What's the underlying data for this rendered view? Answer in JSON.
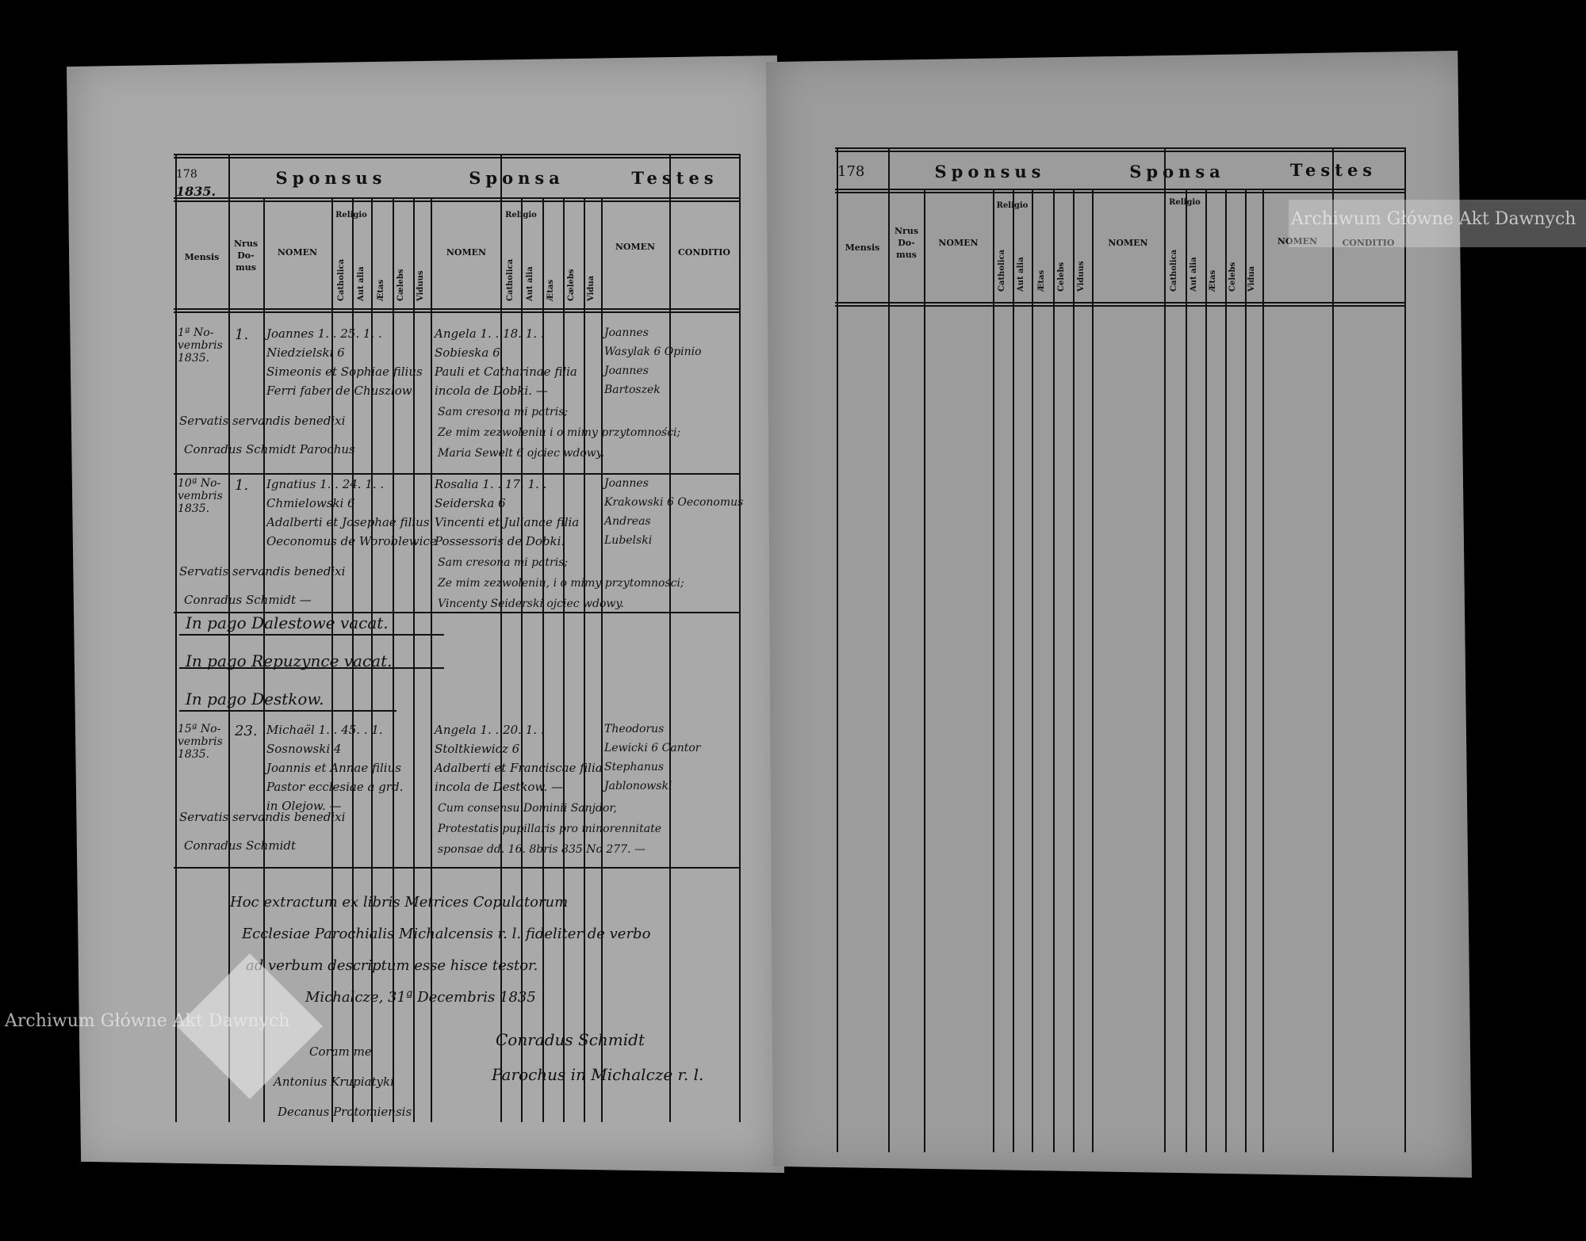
{
  "left_page": {
    "page_number": "178",
    "year": "1835.",
    "section_headers": [
      "Sponsus",
      "Sponsa",
      "Testes"
    ],
    "columns": {
      "mensis": "Mensis",
      "nrus_domus": "Nrus Do- mus",
      "nomen": "NOMEN",
      "religio": "Religio",
      "catholica": "Catholica",
      "aut_alia": "Aut alia",
      "aetas": "Ætas",
      "celebs": "Cælebs",
      "viduus": "Viduus",
      "vidua": "Vidua",
      "conditio": "CONDITIO"
    },
    "entries": [
      {
        "mensis": "1ª No- vembris 1835.",
        "domus": "1.",
        "sponsus": [
          "Joannes 1. . 25. 1. .",
          "Niedzielski 6",
          "Simeonis et Sophiae filius",
          "Ferri faber de Chuszlow"
        ],
        "sponsa": [
          "Angela 1. . 18. 1. .",
          "Sobieska 6",
          "Pauli et Catharinae filia",
          "incola de Dobki. —"
        ],
        "testes": [
          "Joannes",
          "Wasylak 6 Opinio",
          "Joannes",
          "Bartoszek"
        ],
        "notes": [
          "Servatis servandis benedixi",
          "Conradus Schmidt Parochus",
          "Sam cresona mi patris;",
          "Ze mim zezwoleniu i o mimy przytomności;",
          "Maria Sewelt 6 ojciec wdowy."
        ]
      },
      {
        "mensis": "10ª No- vembris 1835.",
        "domus": "1.",
        "sponsus": [
          "Ignatius 1. . 24. 1. .",
          "Chmielowski 6",
          "Adalberti et Josephae filius",
          "Oeconomus de Woroblewice"
        ],
        "sponsa": [
          "Rosalia 1. . 17. 1. .",
          "Seiderska 6",
          "Vincenti et Julianae filia",
          "Possessoris de Dobki."
        ],
        "testes": [
          "Joannes",
          "Krakowski 6 Oeconomus",
          "Andreas",
          "Lubelski"
        ],
        "notes": [
          "Servatis servandis benedixi",
          "Conradus Schmidt —",
          "Sam cresona mi patris;",
          "Ze mim zezwoleniu, i o mimy przytomności;",
          "Vincenty Seiderski ojciec wdowy."
        ]
      }
    ],
    "pago_lines": [
      "In pago Dalestowe vacat.",
      "In pago Repuzynce vacat.",
      "In pago Destkow."
    ],
    "entry3": {
      "mensis": "15ª No- vembris 1835.",
      "domus": "23.",
      "sponsus": [
        "Michaël 1. . 45. . 1.",
        "Sosnowski 4",
        "Joannis et Annae filius",
        "Pastor ecclesiae a grd.",
        "in Olejow. —"
      ],
      "sponsa": [
        "Angela 1. . 20. 1. .",
        "Stoltkiewicz 6",
        "Adalberti et Franciscae filia",
        "incola de Destkow. —"
      ],
      "testes": [
        "Theodorus",
        "Lewicki 6 Cantor",
        "Stephanus",
        "Jablonowski"
      ],
      "notes": [
        "Servatis servandis benedixi",
        "Conradus Schmidt",
        "Cum consensu Dominii Sanjdor,",
        "Protestatis pupillaris pro minorennitate",
        "sponsae dd. 16. 8bris 835 No 277. —"
      ]
    },
    "closing": [
      "Hoc extractum ex libris Metrices Copulatorum",
      "Ecclesiae Parochialis Michalcensis r. l. fideliter de verbo",
      "ad verbum descriptum esse hisce testor.",
      "Michalcze, 31ª Decembris 1835"
    ],
    "witness_signature": [
      "Coram me",
      "Antonius Krupiatyki",
      "Decanus Protomiensis"
    ],
    "priest_signature": [
      "Conradus Schmidt",
      "Parochus in Michalcze r. l."
    ]
  },
  "right_page": {
    "page_number": "178",
    "section_headers": [
      "Sponsus",
      "Sponsa",
      "Testes"
    ],
    "columns": {
      "mensis": "Mensis",
      "nrus_domus": "Nrus Do- mus",
      "nomen": "NOMEN",
      "religio": "Religio",
      "catholica": "Catholica",
      "aut_alia": "Aut alia",
      "aetas": "Ætas",
      "celebs": "Celebs",
      "viduus": "Viduus",
      "vidua": "Vidua",
      "conditio": "CONDITIO"
    }
  },
  "watermark": "Archiwum Główne Akt Dawnych"
}
